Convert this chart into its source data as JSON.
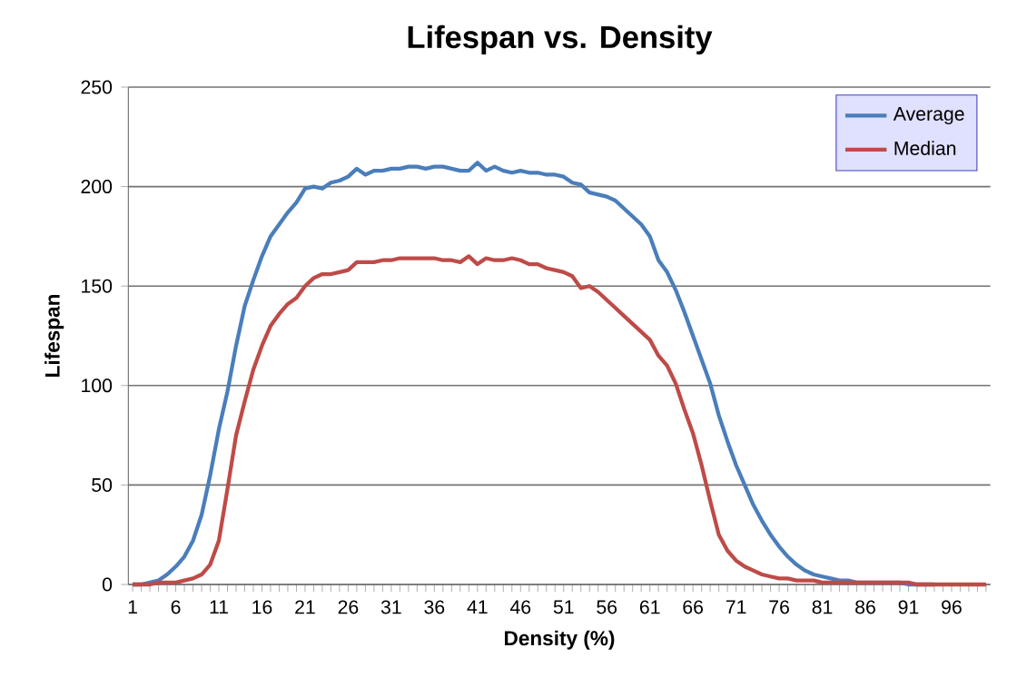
{
  "chart_data": {
    "type": "line",
    "title": "Lifespan vs. Density",
    "xlabel": "Density (%)",
    "ylabel": "Lifespan",
    "categories": [
      "1",
      null,
      null,
      null,
      null,
      "6",
      null,
      null,
      null,
      null,
      "11",
      null,
      null,
      null,
      null,
      "16",
      null,
      null,
      null,
      null,
      "21",
      null,
      null,
      null,
      null,
      "26",
      null,
      null,
      null,
      null,
      "31",
      null,
      null,
      null,
      null,
      "36",
      null,
      null,
      null,
      null,
      "41",
      null,
      null,
      null,
      null,
      "46",
      null,
      null,
      null,
      null,
      "51",
      null,
      null,
      null,
      null,
      "56",
      null,
      null,
      null,
      null,
      "61",
      null,
      null,
      null,
      null,
      "66",
      null,
      null,
      null,
      null,
      "71",
      null,
      null,
      null,
      null,
      "76",
      null,
      null,
      null,
      null,
      "81",
      null,
      null,
      null,
      null,
      "86",
      null,
      null,
      null,
      null,
      "91",
      null,
      null,
      null,
      null,
      "96",
      null,
      null,
      null,
      null
    ],
    "series": [
      {
        "name": "Average",
        "color": "#4a7ebb",
        "values": [
          0,
          0,
          1,
          2,
          5,
          9,
          14,
          22,
          35,
          55,
          78,
          97,
          120,
          140,
          153,
          165,
          175,
          181,
          187,
          192,
          199,
          200,
          199,
          202,
          203,
          205,
          209,
          206,
          208,
          208,
          209,
          209,
          210,
          210,
          209,
          210,
          210,
          209,
          208,
          208,
          212,
          208,
          210,
          208,
          207,
          208,
          207,
          207,
          206,
          206,
          205,
          202,
          201,
          197,
          196,
          195,
          193,
          189,
          185,
          181,
          175,
          163,
          157,
          148,
          137,
          125,
          113,
          101,
          85,
          72,
          60,
          50,
          40,
          32,
          25,
          19,
          14,
          10,
          7,
          5,
          4,
          3,
          2,
          2,
          1,
          1,
          1,
          1,
          1,
          1,
          0,
          0,
          0,
          0,
          null,
          null,
          null,
          null,
          null,
          null
        ]
      },
      {
        "name": "Median",
        "color": "#be4b48",
        "values": [
          0,
          0,
          0,
          1,
          1,
          1,
          2,
          3,
          5,
          10,
          22,
          48,
          75,
          92,
          108,
          120,
          130,
          136,
          141,
          144,
          150,
          154,
          156,
          156,
          157,
          158,
          162,
          162,
          162,
          163,
          163,
          164,
          164,
          164,
          164,
          164,
          163,
          163,
          162,
          165,
          161,
          164,
          163,
          163,
          164,
          163,
          161,
          161,
          159,
          158,
          157,
          155,
          149,
          150,
          147,
          143,
          139,
          135,
          131,
          127,
          123,
          115,
          110,
          101,
          88,
          76,
          60,
          42,
          25,
          17,
          12,
          9,
          7,
          5,
          4,
          3,
          3,
          2,
          2,
          2,
          1,
          1,
          1,
          1,
          1,
          1,
          1,
          1,
          1,
          1,
          1,
          0,
          0,
          0,
          0,
          0,
          0,
          0,
          0,
          0
        ]
      }
    ],
    "ylim": [
      0,
      250
    ],
    "yticks": [
      0,
      50,
      100,
      150,
      200,
      250
    ],
    "grid": "y",
    "legend": "top right",
    "marker": "none",
    "line_style": "solid"
  }
}
